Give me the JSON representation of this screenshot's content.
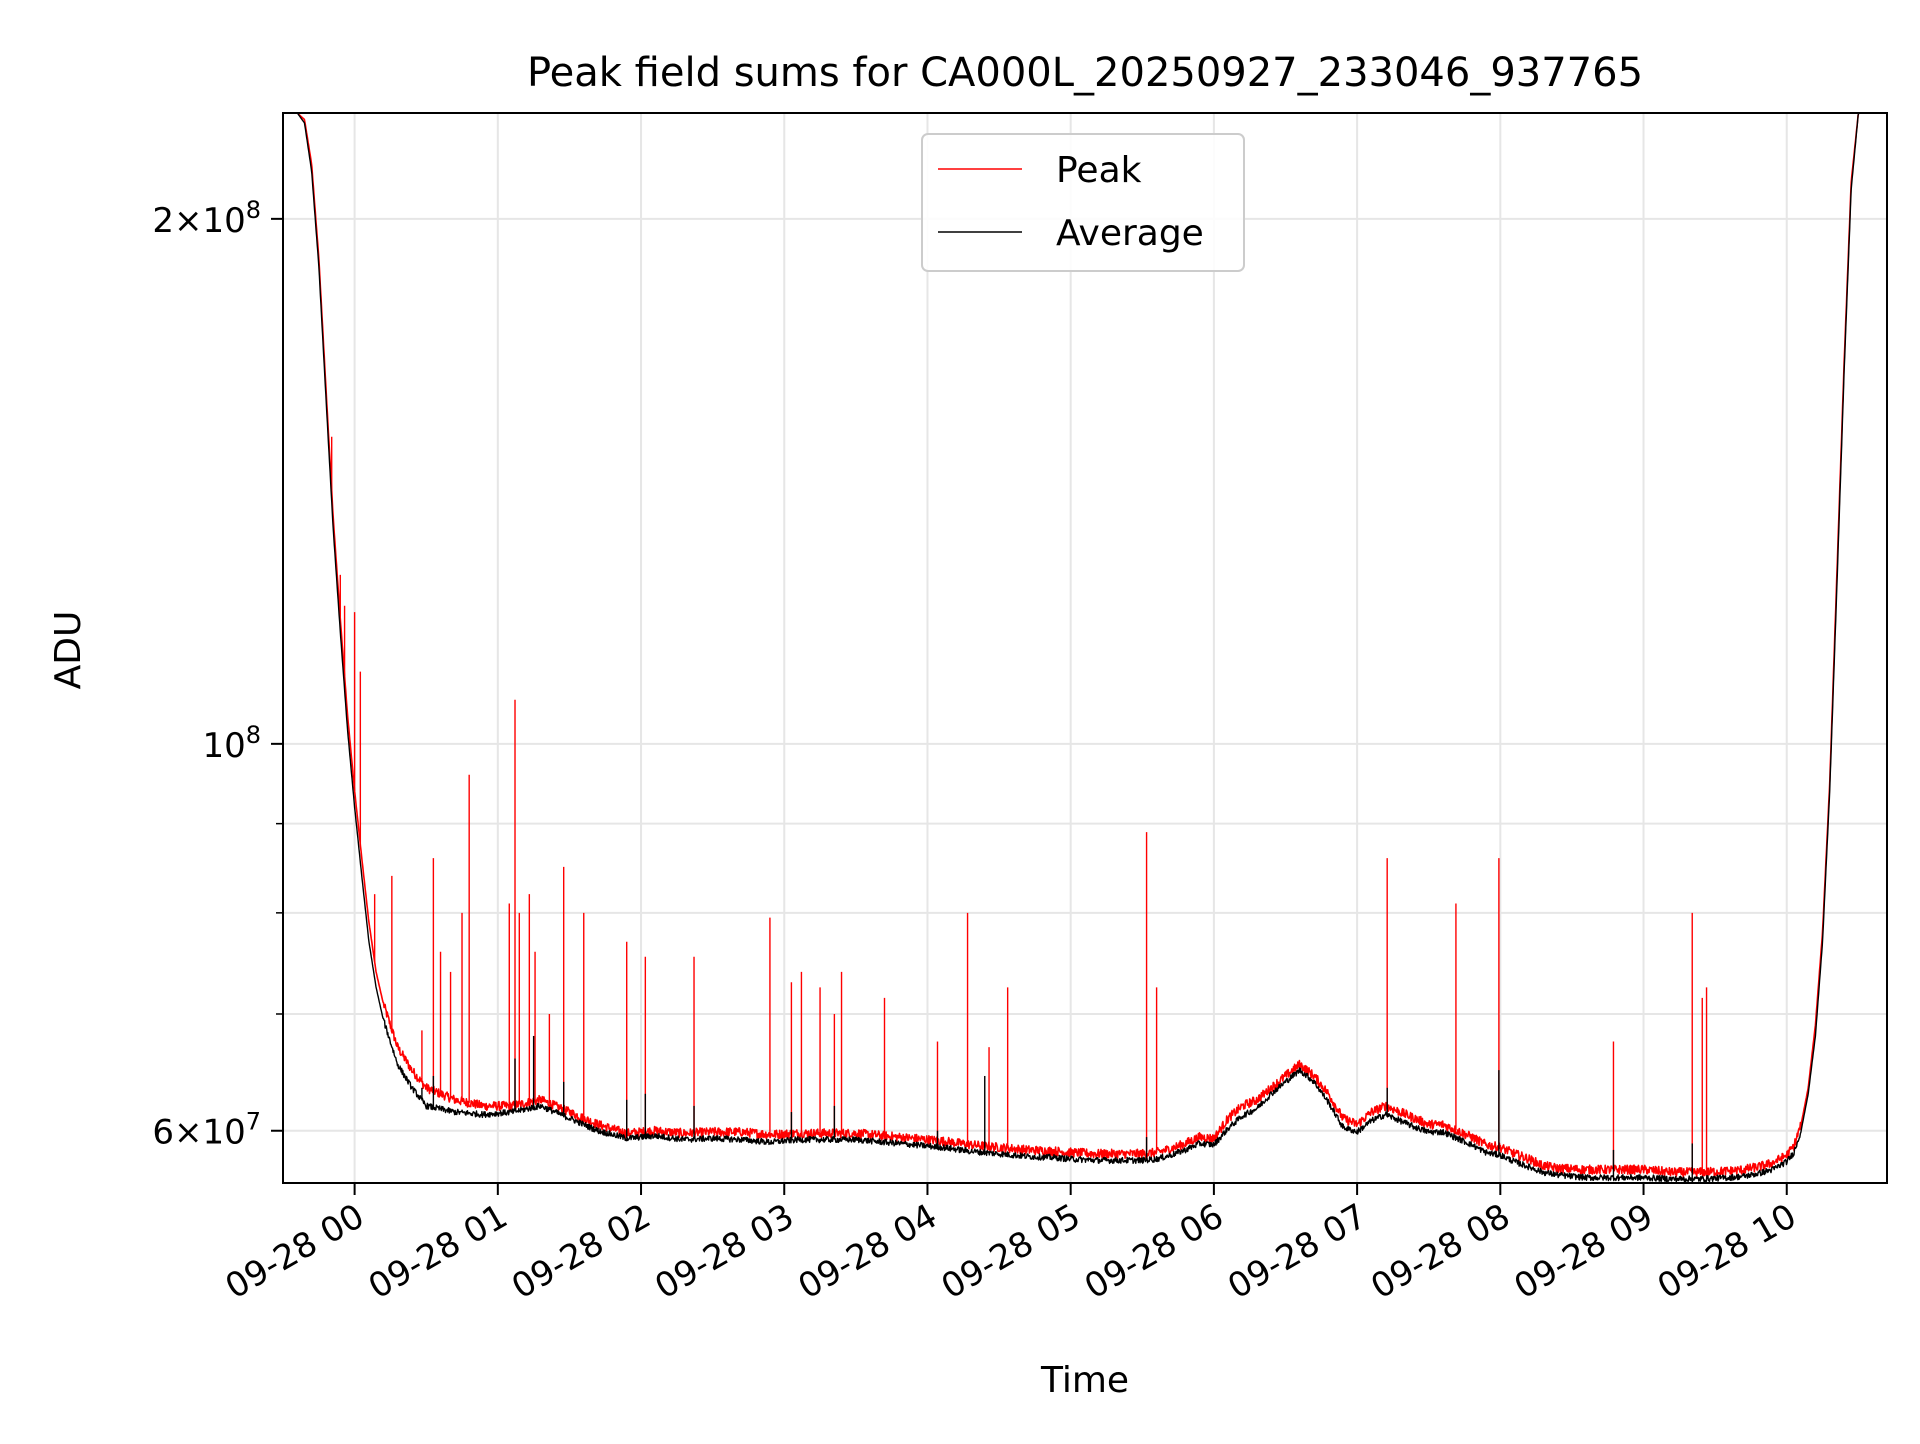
{
  "chart_data": {
    "type": "line",
    "title": "Peak field sums for CA000L_20250927_233046_937765",
    "xlabel": "Time",
    "ylabel": "ADU",
    "yscale": "log",
    "ylim": [
      56000000,
      230000000
    ],
    "xlim_hours": [
      -0.5,
      10.7
    ],
    "grid": true,
    "legend_position": "top-center",
    "x_ticks": [
      {
        "hour": 0,
        "label": "09-28 00"
      },
      {
        "hour": 1,
        "label": "09-28 01"
      },
      {
        "hour": 2,
        "label": "09-28 02"
      },
      {
        "hour": 3,
        "label": "09-28 03"
      },
      {
        "hour": 4,
        "label": "09-28 04"
      },
      {
        "hour": 5,
        "label": "09-28 05"
      },
      {
        "hour": 6,
        "label": "09-28 06"
      },
      {
        "hour": 7,
        "label": "09-28 07"
      },
      {
        "hour": 8,
        "label": "09-28 08"
      },
      {
        "hour": 9,
        "label": "09-28 09"
      },
      {
        "hour": 10,
        "label": "09-28 10"
      }
    ],
    "y_major_ticks": [
      {
        "value": 60000000,
        "label_mantissa": "6",
        "label_base": "10",
        "label_exp": "7"
      },
      {
        "value": 100000000,
        "label_mantissa": "",
        "label_base": "10",
        "label_exp": "8"
      },
      {
        "value": 200000000,
        "label_mantissa": "2",
        "label_base": "10",
        "label_exp": "8"
      }
    ],
    "y_minor_ticks": [
      70000000,
      80000000,
      90000000
    ],
    "series": [
      {
        "name": "Peak",
        "color": "#ff0000",
        "baseline": {
          "x": [
            -0.5,
            -0.4,
            -0.35,
            -0.3,
            -0.25,
            -0.2,
            -0.15,
            -0.1,
            -0.05,
            0.0,
            0.05,
            0.1,
            0.15,
            0.2,
            0.3,
            0.4,
            0.5,
            0.7,
            0.9,
            1.1,
            1.3,
            1.5,
            1.7,
            1.9,
            2.1,
            2.3,
            2.5,
            2.7,
            2.9,
            3.1,
            3.3,
            3.5,
            3.7,
            3.9,
            4.1,
            4.3,
            4.5,
            4.7,
            4.9,
            5.0,
            5.2,
            5.4,
            5.5,
            5.6,
            5.7,
            5.8,
            5.9,
            6.0,
            6.1,
            6.2,
            6.3,
            6.4,
            6.5,
            6.6,
            6.7,
            6.8,
            6.9,
            7.0,
            7.1,
            7.2,
            7.3,
            7.4,
            7.5,
            7.6,
            7.7,
            7.8,
            7.9,
            8.0,
            8.1,
            8.2,
            8.3,
            8.4,
            8.6,
            8.8,
            9.0,
            9.2,
            9.4,
            9.6,
            9.7,
            9.8,
            9.9,
            10.0,
            10.05,
            10.1,
            10.15,
            10.2,
            10.25,
            10.3,
            10.35,
            10.4,
            10.45,
            10.5,
            10.7
          ],
          "y": [
            230000000,
            230000000,
            228000000,
            215000000,
            190000000,
            160000000,
            135000000,
            118000000,
            104000000,
            94000000,
            86000000,
            79000000,
            74000000,
            71000000,
            67000000,
            65000000,
            63500000,
            62500000,
            62000000,
            62000000,
            62500000,
            61500000,
            60500000,
            59800000,
            60000000,
            59800000,
            59900000,
            59900000,
            59700000,
            59800000,
            59800000,
            59800000,
            59600000,
            59400000,
            59200000,
            58900000,
            58700000,
            58500000,
            58400000,
            58300000,
            58200000,
            58200000,
            58200000,
            58300000,
            58600000,
            59000000,
            59500000,
            59400000,
            61000000,
            62000000,
            62500000,
            63500000,
            64500000,
            65500000,
            64500000,
            63000000,
            61000000,
            60500000,
            61500000,
            62000000,
            61500000,
            61000000,
            60500000,
            60500000,
            60000000,
            59500000,
            58900000,
            58700000,
            58200000,
            57800000,
            57300000,
            57100000,
            57000000,
            57000000,
            57000000,
            56800000,
            56800000,
            56900000,
            57000000,
            57200000,
            57500000,
            58100000,
            58800000,
            60500000,
            63500000,
            69000000,
            78000000,
            95000000,
            125000000,
            165000000,
            210000000,
            230000000,
            230000000
          ]
        },
        "spikes": [
          {
            "x": -0.16,
            "y": 150000000
          },
          {
            "x": -0.1,
            "y": 125000000
          },
          {
            "x": -0.07,
            "y": 120000000
          },
          {
            "x": 0.0,
            "y": 119000000
          },
          {
            "x": 0.04,
            "y": 110000000
          },
          {
            "x": 0.14,
            "y": 82000000
          },
          {
            "x": 0.26,
            "y": 84000000
          },
          {
            "x": 0.47,
            "y": 68500000
          },
          {
            "x": 0.55,
            "y": 86000000
          },
          {
            "x": 0.6,
            "y": 76000000
          },
          {
            "x": 0.67,
            "y": 74000000
          },
          {
            "x": 0.75,
            "y": 80000000
          },
          {
            "x": 0.8,
            "y": 96000000
          },
          {
            "x": 1.08,
            "y": 81000000
          },
          {
            "x": 1.12,
            "y": 106000000
          },
          {
            "x": 1.15,
            "y": 80000000
          },
          {
            "x": 1.22,
            "y": 82000000
          },
          {
            "x": 1.26,
            "y": 76000000
          },
          {
            "x": 1.36,
            "y": 70000000
          },
          {
            "x": 1.46,
            "y": 85000000
          },
          {
            "x": 1.6,
            "y": 80000000
          },
          {
            "x": 1.9,
            "y": 77000000
          },
          {
            "x": 2.03,
            "y": 75500000
          },
          {
            "x": 2.37,
            "y": 75500000
          },
          {
            "x": 2.9,
            "y": 79500000
          },
          {
            "x": 3.05,
            "y": 73000000
          },
          {
            "x": 3.12,
            "y": 74000000
          },
          {
            "x": 3.25,
            "y": 72500000
          },
          {
            "x": 3.35,
            "y": 70000000
          },
          {
            "x": 3.4,
            "y": 74000000
          },
          {
            "x": 3.7,
            "y": 71500000
          },
          {
            "x": 4.07,
            "y": 67500000
          },
          {
            "x": 4.28,
            "y": 80000000
          },
          {
            "x": 4.43,
            "y": 67000000
          },
          {
            "x": 4.56,
            "y": 72500000
          },
          {
            "x": 5.53,
            "y": 89000000
          },
          {
            "x": 5.6,
            "y": 72500000
          },
          {
            "x": 7.21,
            "y": 86000000
          },
          {
            "x": 7.69,
            "y": 81000000
          },
          {
            "x": 7.99,
            "y": 86000000
          },
          {
            "x": 8.79,
            "y": 67500000
          },
          {
            "x": 9.34,
            "y": 80000000
          },
          {
            "x": 9.41,
            "y": 71500000
          },
          {
            "x": 9.44,
            "y": 72500000
          },
          {
            "x": 10.25,
            "y": 78000000
          }
        ]
      },
      {
        "name": "Average",
        "color": "#000000",
        "baseline": {
          "x": [
            -0.5,
            -0.4,
            -0.35,
            -0.3,
            -0.25,
            -0.2,
            -0.15,
            -0.1,
            -0.05,
            0.0,
            0.05,
            0.1,
            0.15,
            0.2,
            0.3,
            0.4,
            0.5,
            0.7,
            0.9,
            1.1,
            1.3,
            1.5,
            1.7,
            1.9,
            2.1,
            2.3,
            2.5,
            2.7,
            2.9,
            3.1,
            3.3,
            3.5,
            3.7,
            3.9,
            4.1,
            4.3,
            4.5,
            4.7,
            4.9,
            5.0,
            5.2,
            5.4,
            5.5,
            5.6,
            5.7,
            5.8,
            5.9,
            6.0,
            6.1,
            6.2,
            6.3,
            6.4,
            6.5,
            6.6,
            6.7,
            6.8,
            6.9,
            7.0,
            7.1,
            7.2,
            7.3,
            7.4,
            7.5,
            7.6,
            7.7,
            7.8,
            7.9,
            8.0,
            8.1,
            8.2,
            8.3,
            8.4,
            8.6,
            8.8,
            9.0,
            9.2,
            9.4,
            9.6,
            9.7,
            9.8,
            9.9,
            10.0,
            10.05,
            10.1,
            10.15,
            10.2,
            10.25,
            10.3,
            10.35,
            10.4,
            10.45,
            10.5,
            10.7
          ],
          "y": [
            230000000,
            230000000,
            227000000,
            213000000,
            188000000,
            158000000,
            133000000,
            116000000,
            102000000,
            92000000,
            84000000,
            77000000,
            72500000,
            69500000,
            65500000,
            63500000,
            62000000,
            61500000,
            61300000,
            61500000,
            62000000,
            61000000,
            60000000,
            59400000,
            59600000,
            59300000,
            59400000,
            59300000,
            59100000,
            59300000,
            59300000,
            59300000,
            59100000,
            58900000,
            58700000,
            58400000,
            58200000,
            58000000,
            57900000,
            57800000,
            57700000,
            57700000,
            57700000,
            57800000,
            58100000,
            58500000,
            59000000,
            58900000,
            60200000,
            61200000,
            61800000,
            63000000,
            64000000,
            65000000,
            64000000,
            62300000,
            60300000,
            59900000,
            60800000,
            61300000,
            60800000,
            60300000,
            59900000,
            59900000,
            59400000,
            58900000,
            58300000,
            58100000,
            57600000,
            57200000,
            56800000,
            56600000,
            56400000,
            56400000,
            56400000,
            56300000,
            56300000,
            56400000,
            56500000,
            56700000,
            57000000,
            57600000,
            58300000,
            60000000,
            63000000,
            68000000,
            77000000,
            94000000,
            123000000,
            163000000,
            208000000,
            230000000,
            230000000
          ]
        },
        "spikes": [
          {
            "x": 0.47,
            "y": 63500000
          },
          {
            "x": 0.55,
            "y": 64500000
          },
          {
            "x": 1.12,
            "y": 66000000
          },
          {
            "x": 1.25,
            "y": 68000000
          },
          {
            "x": 1.46,
            "y": 64000000
          },
          {
            "x": 1.9,
            "y": 62500000
          },
          {
            "x": 2.03,
            "y": 63000000
          },
          {
            "x": 2.37,
            "y": 62000000
          },
          {
            "x": 3.05,
            "y": 61500000
          },
          {
            "x": 3.35,
            "y": 62000000
          },
          {
            "x": 4.07,
            "y": 60000000
          },
          {
            "x": 4.4,
            "y": 64500000
          },
          {
            "x": 5.53,
            "y": 59500000
          },
          {
            "x": 7.21,
            "y": 63500000
          },
          {
            "x": 7.99,
            "y": 65000000
          },
          {
            "x": 8.79,
            "y": 58500000
          },
          {
            "x": 9.34,
            "y": 59000000
          }
        ]
      }
    ]
  }
}
